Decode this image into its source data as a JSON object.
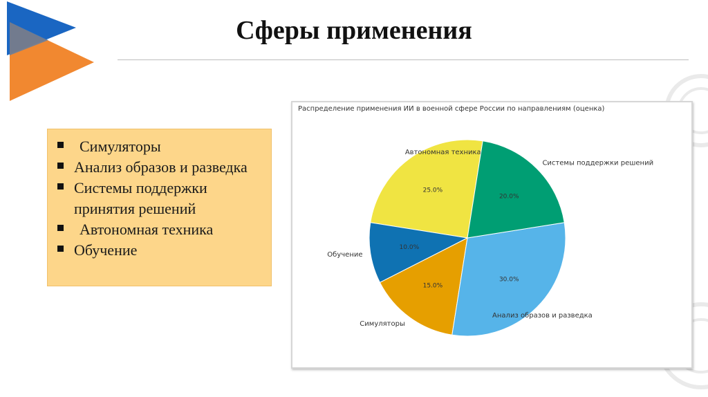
{
  "title": "Сферы применения",
  "bullets": [
    "Симуляторы",
    "Анализ образов и разведка",
    "Системы поддержки принятия решений",
    "Автономная техника",
    "Обучение"
  ],
  "colors": {
    "logo_blue": "#1a66c2",
    "logo_orange": "#f07e1e",
    "bullet_box": "#fdd68a"
  },
  "chart_data": {
    "type": "pie",
    "title": "Распределение применения ИИ в военной сфере России по направлениям (оценка)",
    "slices": [
      {
        "label": "Автономная техника",
        "value": 25.0,
        "pct_label": "25.0%",
        "color": "#f0e442"
      },
      {
        "label": "Обучение",
        "value": 10.0,
        "pct_label": "10.0%",
        "color": "#0f72b2"
      },
      {
        "label": "Симуляторы",
        "value": 15.0,
        "pct_label": "15.0%",
        "color": "#e69f00"
      },
      {
        "label": "Анализ образов и разведка",
        "value": 30.0,
        "pct_label": "30.0%",
        "color": "#56b4e9"
      },
      {
        "label": "Системы поддержки решений",
        "value": 20.0,
        "pct_label": "20.0%",
        "color": "#009e73"
      }
    ]
  }
}
